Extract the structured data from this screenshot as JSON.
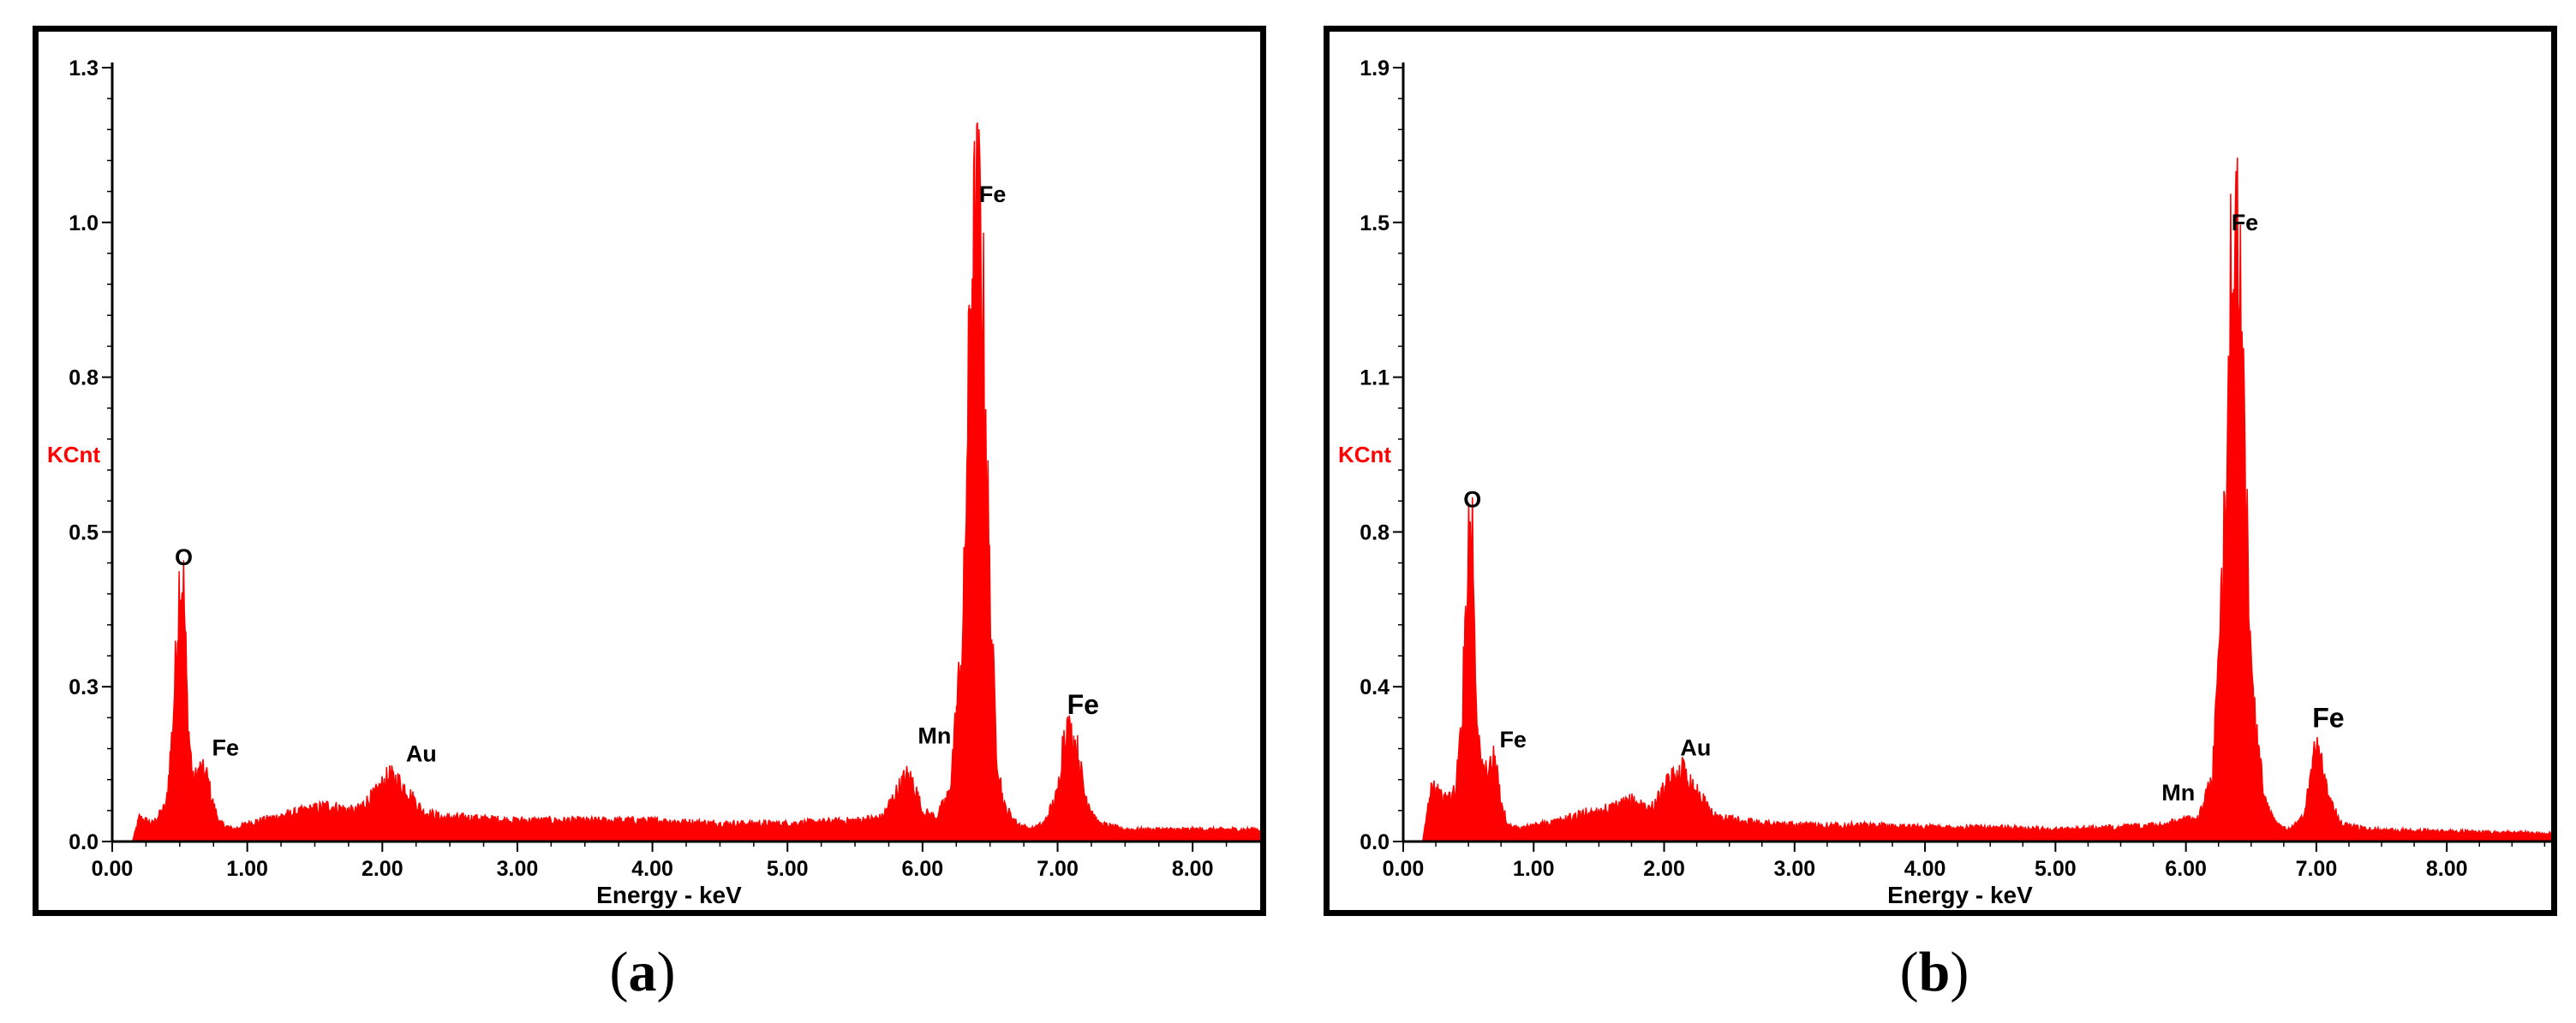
{
  "chart_data": [
    {
      "type": "area",
      "panel": "a",
      "xlabel": "Energy - keV",
      "ylabel": "KCnt",
      "xlim": [
        0,
        8.5
      ],
      "ylim": [
        0,
        1.3
      ],
      "xticks": [
        0,
        1,
        2,
        3,
        4,
        5,
        6,
        7,
        8
      ],
      "xtick_labels": [
        "0.00",
        "1.00",
        "2.00",
        "3.00",
        "4.00",
        "5.00",
        "6.00",
        "7.00",
        "8.00"
      ],
      "yticks": [
        0,
        0.26,
        0.52,
        0.78,
        1.04,
        1.3
      ],
      "ytick_labels": [
        "0.0",
        "0.3",
        "0.5",
        "0.8",
        "1.0",
        "1.3"
      ],
      "series": [
        {
          "x": [
            0.15,
            0.2,
            0.3,
            0.4,
            0.45,
            0.5,
            0.53,
            0.56,
            0.6,
            0.65,
            0.7,
            0.75,
            0.8,
            0.9,
            1.0,
            1.2,
            1.4,
            1.6,
            1.8,
            1.95,
            2.05,
            2.12,
            2.2,
            2.3,
            2.45,
            2.6,
            3.0,
            3.5,
            4.0,
            4.5,
            5.0,
            5.5,
            5.7,
            5.8,
            5.88,
            5.93,
            6.0,
            6.1,
            6.2,
            6.3,
            6.36,
            6.4,
            6.43,
            6.46,
            6.5,
            6.55,
            6.6,
            6.7,
            6.8,
            6.9,
            7.0,
            7.05,
            7.1,
            7.15,
            7.2,
            7.3,
            7.5,
            8.0,
            8.5
          ],
          "y": [
            0.0,
            0.04,
            0.03,
            0.06,
            0.2,
            0.45,
            0.42,
            0.2,
            0.1,
            0.12,
            0.11,
            0.06,
            0.03,
            0.02,
            0.03,
            0.04,
            0.05,
            0.06,
            0.05,
            0.08,
            0.11,
            0.1,
            0.08,
            0.05,
            0.04,
            0.04,
            0.035,
            0.035,
            0.035,
            0.03,
            0.03,
            0.035,
            0.04,
            0.08,
            0.11,
            0.1,
            0.05,
            0.04,
            0.08,
            0.35,
            0.95,
            1.04,
            1.02,
            0.8,
            0.4,
            0.15,
            0.06,
            0.03,
            0.02,
            0.03,
            0.08,
            0.19,
            0.18,
            0.15,
            0.08,
            0.03,
            0.02,
            0.02,
            0.02
          ]
        }
      ],
      "annotations": [
        {
          "text": "O",
          "x": 0.53,
          "y": 0.45
        },
        {
          "text": "Fe",
          "x": 0.75,
          "y": 0.13
        },
        {
          "text": "Au",
          "x": 2.2,
          "y": 0.12
        },
        {
          "text": "Mn",
          "x": 6.0,
          "y": 0.15
        },
        {
          "text": "Fe",
          "x": 6.43,
          "y": 1.06
        },
        {
          "text": "Fe",
          "x": 7.1,
          "y": 0.2,
          "large": true
        }
      ]
    },
    {
      "type": "area",
      "panel": "b",
      "xlabel": "Energy - keV",
      "ylabel": "KCnt",
      "xlim": [
        0,
        8.8
      ],
      "ylim": [
        0,
        1.9
      ],
      "xticks": [
        0,
        1,
        2,
        3,
        4,
        5,
        6,
        7,
        8
      ],
      "xtick_labels": [
        "0.00",
        "1.00",
        "2.00",
        "3.00",
        "4.00",
        "5.00",
        "6.00",
        "7.00",
        "8.00"
      ],
      "yticks": [
        0,
        0.38,
        0.76,
        1.14,
        1.52,
        1.9
      ],
      "ytick_labels": [
        "0.0",
        "0.4",
        "0.8",
        "1.1",
        "1.5",
        "1.9"
      ],
      "series": [
        {
          "x": [
            0.15,
            0.22,
            0.3,
            0.4,
            0.45,
            0.5,
            0.53,
            0.56,
            0.6,
            0.65,
            0.7,
            0.75,
            0.8,
            0.9,
            1.0,
            1.2,
            1.4,
            1.6,
            1.75,
            1.9,
            2.05,
            2.15,
            2.25,
            2.4,
            2.6,
            3.0,
            3.5,
            4.0,
            4.5,
            5.0,
            5.5,
            5.8,
            5.95,
            6.1,
            6.2,
            6.28,
            6.33,
            6.36,
            6.4,
            6.45,
            6.5,
            6.6,
            6.7,
            6.8,
            6.9,
            6.95,
            7.0,
            7.05,
            7.1,
            7.2,
            7.4,
            8.0,
            8.8
          ],
          "y": [
            0.0,
            0.15,
            0.1,
            0.12,
            0.3,
            0.75,
            0.78,
            0.35,
            0.17,
            0.18,
            0.2,
            0.1,
            0.04,
            0.03,
            0.04,
            0.05,
            0.07,
            0.08,
            0.1,
            0.08,
            0.15,
            0.18,
            0.12,
            0.06,
            0.05,
            0.04,
            0.04,
            0.035,
            0.035,
            0.03,
            0.035,
            0.04,
            0.05,
            0.06,
            0.15,
            0.6,
            1.25,
            1.46,
            1.44,
            1.0,
            0.4,
            0.1,
            0.04,
            0.03,
            0.06,
            0.15,
            0.24,
            0.2,
            0.1,
            0.04,
            0.03,
            0.025,
            0.02
          ]
        }
      ],
      "annotations": [
        {
          "text": "O",
          "x": 0.53,
          "y": 0.8
        },
        {
          "text": "Fe",
          "x": 0.75,
          "y": 0.21
        },
        {
          "text": "Au",
          "x": 2.15,
          "y": 0.19
        },
        {
          "text": "Mn",
          "x": 5.85,
          "y": 0.08
        },
        {
          "text": "Fe",
          "x": 6.36,
          "y": 1.48
        },
        {
          "text": "Fe",
          "x": 7.0,
          "y": 0.26,
          "large": true
        }
      ]
    }
  ],
  "captions": [
    {
      "open": "(",
      "letter": "a",
      "close": ")"
    },
    {
      "open": "(",
      "letter": "b",
      "close": ")"
    }
  ]
}
